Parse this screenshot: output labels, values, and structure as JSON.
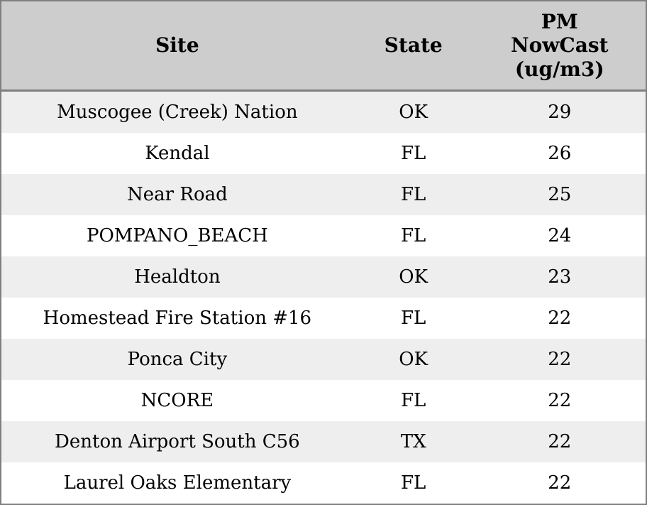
{
  "chart_data": {
    "type": "table",
    "columns": [
      "Site",
      "State",
      "PM NowCast (ug/m3)"
    ],
    "rows": [
      {
        "site": "Muscogee (Creek) Nation",
        "state": "OK",
        "value": "29"
      },
      {
        "site": "Kendal",
        "state": "FL",
        "value": "26"
      },
      {
        "site": "Near Road",
        "state": "FL",
        "value": "25"
      },
      {
        "site": "POMPANO_BEACH",
        "state": "FL",
        "value": "24"
      },
      {
        "site": "Healdton",
        "state": "OK",
        "value": "23"
      },
      {
        "site": "Homestead Fire Station #16",
        "state": "FL",
        "value": "22"
      },
      {
        "site": "Ponca City",
        "state": "OK",
        "value": "22"
      },
      {
        "site": "NCORE",
        "state": "FL",
        "value": "22"
      },
      {
        "site": "Denton Airport South C56",
        "state": "TX",
        "value": "22"
      },
      {
        "site": "Laurel Oaks Elementary",
        "state": "FL",
        "value": "22"
      }
    ],
    "layout": {
      "zebra_striping": true,
      "header_position": "top",
      "text_alignment": "center"
    }
  },
  "colors": {
    "header_bg": "#cdcdcd",
    "row_alt_bg": "#eeeeee",
    "row_bg": "#ffffff",
    "border": "#7f7f7f",
    "text": "#000000"
  }
}
